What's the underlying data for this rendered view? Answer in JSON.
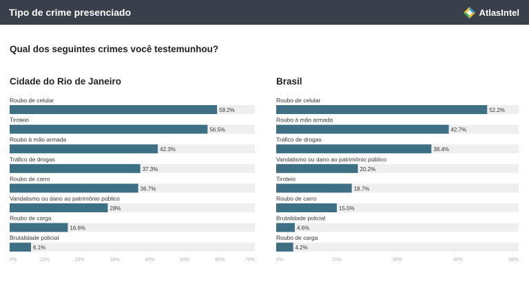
{
  "header": {
    "title": "Tipo de crime presenciado",
    "brand": "AtlasIntel"
  },
  "question": "Qual dos seguintes crimes você testemunhou?",
  "colors": {
    "bar": "#3d6f85",
    "track": "#efefef",
    "header_bg": "#3a3f4c",
    "axis_text": "#b0b0b0"
  },
  "chart_data": [
    {
      "type": "bar",
      "orientation": "horizontal",
      "title": "Cidade do Rio de Janeiro",
      "categories": [
        "Roubo de celular",
        "Tiroteio",
        "Roubo à mão armada",
        "Tráfico de drogas",
        "Roubo de carro",
        "Vandalismo ou dano ao patrimônio público",
        "Roubo de carga",
        "Brutalidade policial"
      ],
      "values": [
        59.2,
        56.5,
        42.3,
        37.3,
        36.7,
        28,
        16.6,
        6.1
      ],
      "value_labels": [
        "59.2%",
        "56.5%",
        "42.3%",
        "37.3%",
        "36.7%",
        "28%",
        "16.6%",
        "6.1%"
      ],
      "xlim": [
        0,
        70
      ],
      "ticks": [
        0,
        10,
        20,
        30,
        40,
        50,
        60,
        70
      ],
      "tick_labels": [
        "0%",
        "10%",
        "20%",
        "30%",
        "40%",
        "50%",
        "60%",
        "70%"
      ]
    },
    {
      "type": "bar",
      "orientation": "horizontal",
      "title": "Brasil",
      "categories": [
        "Roubo de celular",
        "Roubo à mão armada",
        "Tráfico de drogas",
        "Vandalismo ou dano ao patrimônio público",
        "Tiroteio",
        "Roubo de carro",
        "Brutalidade policial",
        "Roubo de carga"
      ],
      "values": [
        52.2,
        42.7,
        38.4,
        20.2,
        18.7,
        15.0,
        4.6,
        4.2
      ],
      "value_labels": [
        "52.2%",
        "42.7%",
        "38.4%",
        "20.2%",
        "18.7%",
        "15.0%",
        "4.6%",
        "4.2%"
      ],
      "xlim": [
        0,
        60
      ],
      "ticks": [
        0,
        15,
        30,
        45,
        60
      ],
      "tick_labels": [
        "0%",
        "15%",
        "30%",
        "45%",
        "60%"
      ]
    }
  ]
}
